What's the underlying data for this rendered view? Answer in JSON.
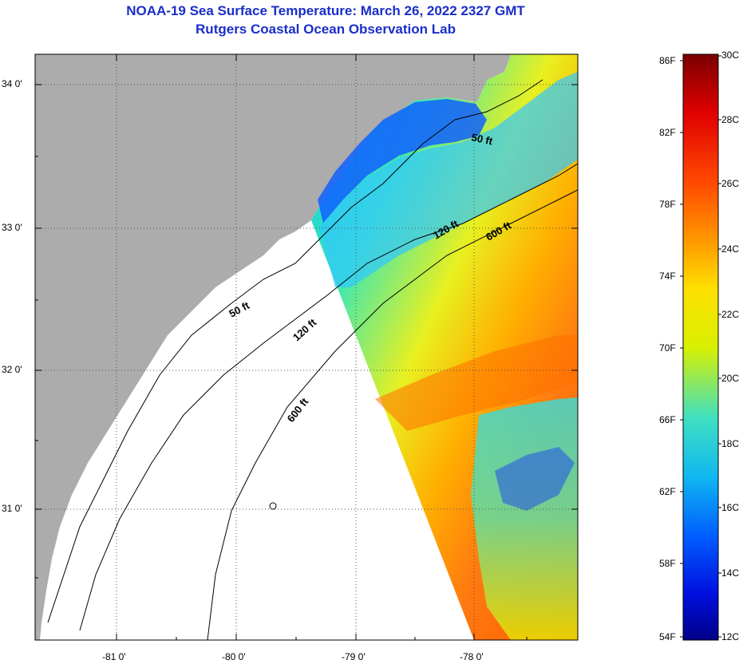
{
  "header": {
    "title": "NOAA-19 Sea Surface Temperature:  March 26, 2022 2327 GMT",
    "subtitle": "Rutgers Coastal Ocean Observation Lab"
  },
  "map": {
    "lat_labels": [
      "34 0'",
      "33 0'",
      "32 0'",
      "31 0'"
    ],
    "lon_labels": [
      "-81 0'",
      "-80 0'",
      "-79 0'",
      "-78 0'"
    ],
    "isobaths": {
      "ocean": [
        "50 ft",
        "120 ft",
        "600 ft"
      ],
      "shelf": [
        "50 ft",
        "120 ft",
        "600 ft"
      ]
    },
    "colors": {
      "land": "#acacac",
      "no_data": "#ffffff",
      "grid": "#555555"
    }
  },
  "colorbar": {
    "fahrenheit": [
      "86F",
      "82F",
      "78F",
      "74F",
      "70F",
      "66F",
      "62F",
      "58F",
      "54F"
    ],
    "celsius": [
      "30C",
      "28C",
      "26C",
      "24C",
      "22C",
      "20C",
      "18C",
      "16C",
      "14C",
      "12C"
    ],
    "gradient_stops": [
      "#7a0000",
      "#e00000",
      "#ff4a00",
      "#ff9a00",
      "#ffe000",
      "#d8f000",
      "#40e0c0",
      "#10b8f0",
      "#0060ff",
      "#0010e0",
      "#000088"
    ]
  }
}
